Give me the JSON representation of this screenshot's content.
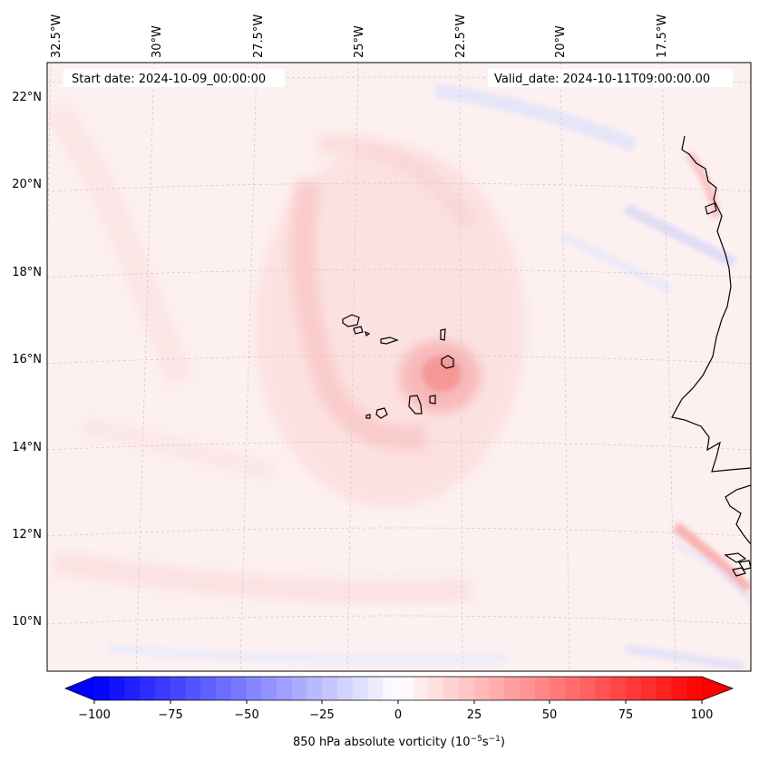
{
  "map": {
    "start_date_label": "Start date: 2024-10-09_00:00:00",
    "valid_date_label": "Valid_date: 2024-10-11T09:00:00.00",
    "lon_labels": [
      "32.5°W",
      "30°W",
      "27.5°W",
      "25°W",
      "22.5°W",
      "20°W",
      "17.5°W"
    ],
    "lat_labels": [
      "22°N",
      "20°N",
      "18°N",
      "16°N",
      "14°N",
      "12°N",
      "10°N"
    ],
    "gridlines": true
  },
  "colorbar": {
    "label_main": "850 hPa absolute vorticity (10",
    "label_exp1": "−5",
    "label_mid": "s",
    "label_exp2": "−1",
    "label_end": ")",
    "ticks": [
      "−100",
      "−75",
      "−50",
      "−25",
      "0",
      "25",
      "50",
      "75",
      "100"
    ],
    "vmin": -100,
    "vmax": 100,
    "cmap": "bwr",
    "colors": {
      "min": "#0000ff",
      "mid": "#ffffff",
      "max": "#ff0000"
    }
  }
}
